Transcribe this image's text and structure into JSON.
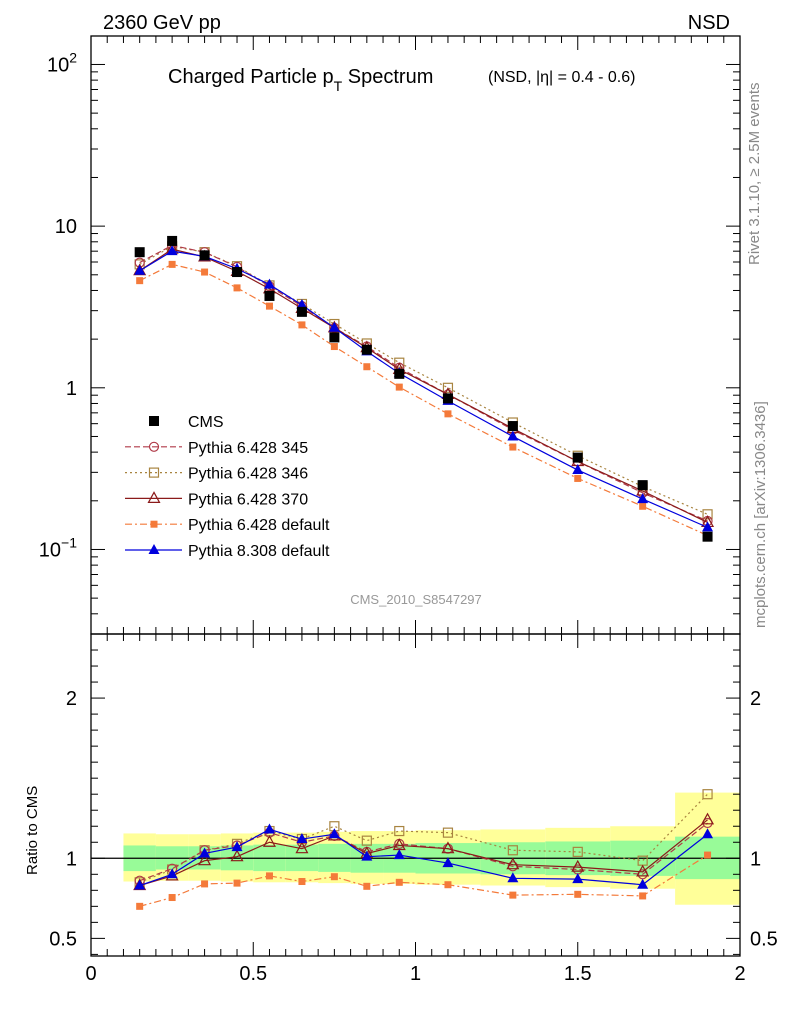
{
  "header": {
    "left": "2360 GeV pp",
    "right": "NSD"
  },
  "title": {
    "main_pre": "Charged Particle p",
    "main_sub": "T",
    "main_post": " Spectrum",
    "suffix": "(NSD, |η| = 0.4 - 0.6)"
  },
  "side_labels": {
    "rivet": "Rivet 3.1.10, ≥ 2.5M events",
    "mcplots": "mcplots.cern.ch [arXiv:1306.3436]"
  },
  "analysis_label": "CMS_2010_S8547297",
  "ratio_ylabel": "Ratio to CMS",
  "colors": {
    "cms": "#000000",
    "py345": "#b03a48",
    "py346": "#a88440",
    "py370": "#8b1a1a",
    "pydef": "#f47a3a",
    "py8": "#0000dd",
    "band_inner": "#98fb98",
    "band_outer": "#ffff99"
  },
  "chart_data": [
    {
      "type": "scatter",
      "panel": "main",
      "yscale": "log",
      "xlim": [
        0,
        2
      ],
      "ylim": [
        0.03,
        150
      ],
      "ytick_labels": [
        "10^-1",
        "1",
        "10",
        "10^2"
      ],
      "x": [
        0.15,
        0.25,
        0.35,
        0.45,
        0.55,
        0.65,
        0.75,
        0.85,
        0.95,
        1.1,
        1.3,
        1.5,
        1.7,
        1.9
      ],
      "series": [
        {
          "name": "CMS",
          "key": "cms",
          "values": [
            6.9,
            8.1,
            6.6,
            5.2,
            3.7,
            2.95,
            2.05,
            1.72,
            1.22,
            0.86,
            0.58,
            0.37,
            0.25,
            0.12
          ]
        },
        {
          "name": "Pythia 6.428 345",
          "key": "py345",
          "values": [
            5.95,
            7.6,
            6.9,
            5.6,
            4.25,
            3.2,
            2.35,
            1.8,
            1.33,
            0.91,
            0.55,
            0.35,
            0.224,
            0.15
          ]
        },
        {
          "name": "Pythia 6.428 346",
          "key": "py346",
          "values": [
            5.8,
            7.5,
            6.9,
            5.65,
            4.3,
            3.3,
            2.48,
            1.88,
            1.43,
            1.0,
            0.61,
            0.38,
            0.245,
            0.165
          ]
        },
        {
          "name": "Pythia 6.428 370",
          "key": "py370",
          "values": [
            5.3,
            7.2,
            6.45,
            5.25,
            4.1,
            3.1,
            2.35,
            1.77,
            1.3,
            0.91,
            0.56,
            0.35,
            0.23,
            0.147
          ]
        },
        {
          "name": "Pythia 6.428 default",
          "key": "pydef",
          "values": [
            4.6,
            5.8,
            5.2,
            4.15,
            3.2,
            2.45,
            1.8,
            1.35,
            1.01,
            0.69,
            0.43,
            0.275,
            0.185,
            0.122
          ]
        },
        {
          "name": "Pythia 8.308 default",
          "key": "py8",
          "values": [
            5.3,
            7.0,
            6.5,
            5.45,
            4.35,
            3.25,
            2.35,
            1.68,
            1.23,
            0.83,
            0.5,
            0.31,
            0.205,
            0.137
          ]
        }
      ]
    },
    {
      "type": "line",
      "panel": "ratio",
      "xlim": [
        0,
        2
      ],
      "ylim": [
        0.39,
        2.4
      ],
      "ytick_labels": [
        "0.5",
        "1",
        "2"
      ],
      "xtick_labels": [
        "0",
        "0.5",
        "1",
        "1.5",
        "2"
      ],
      "x": [
        0.15,
        0.25,
        0.35,
        0.45,
        0.55,
        0.65,
        0.75,
        0.85,
        0.95,
        1.1,
        1.3,
        1.5,
        1.7,
        1.9
      ],
      "bands": {
        "edges": [
          0.1,
          0.2,
          0.3,
          0.4,
          0.5,
          0.6,
          0.7,
          0.8,
          0.9,
          1.0,
          1.2,
          1.4,
          1.6,
          1.8,
          2.0
        ],
        "inner_lo": [
          0.92,
          0.93,
          0.93,
          0.925,
          0.92,
          0.92,
          0.915,
          0.91,
          0.91,
          0.905,
          0.9,
          0.895,
          0.89,
          0.87
        ],
        "inner_hi": [
          1.08,
          1.075,
          1.075,
          1.08,
          1.085,
          1.085,
          1.09,
          1.09,
          1.09,
          1.095,
          1.1,
          1.105,
          1.11,
          1.135
        ],
        "outer_lo": [
          0.855,
          0.86,
          0.86,
          0.855,
          0.85,
          0.85,
          0.845,
          0.84,
          0.84,
          0.835,
          0.83,
          0.82,
          0.81,
          0.71
        ],
        "outer_hi": [
          1.155,
          1.15,
          1.15,
          1.155,
          1.16,
          1.16,
          1.165,
          1.17,
          1.17,
          1.175,
          1.18,
          1.19,
          1.2,
          1.41
        ]
      },
      "series": [
        {
          "name": "Pythia 6.428 345",
          "key": "py345",
          "values": [
            0.86,
            0.935,
            1.05,
            1.08,
            1.16,
            1.1,
            1.14,
            1.04,
            1.09,
            1.06,
            0.95,
            0.93,
            0.9,
            1.22
          ]
        },
        {
          "name": "Pythia 6.428 346",
          "key": "py346",
          "values": [
            0.85,
            0.93,
            1.05,
            1.09,
            1.17,
            1.12,
            1.2,
            1.11,
            1.17,
            1.16,
            1.05,
            1.04,
            0.985,
            1.4
          ]
        },
        {
          "name": "Pythia 6.428 370",
          "key": "py370",
          "values": [
            0.83,
            0.89,
            0.985,
            1.01,
            1.1,
            1.06,
            1.14,
            1.03,
            1.08,
            1.06,
            0.96,
            0.945,
            0.915,
            1.24
          ]
        },
        {
          "name": "Pythia 6.428 default",
          "key": "pydef",
          "values": [
            0.7,
            0.755,
            0.84,
            0.845,
            0.89,
            0.855,
            0.885,
            0.825,
            0.85,
            0.835,
            0.77,
            0.775,
            0.765,
            1.02
          ]
        },
        {
          "name": "Pythia 8.308 default",
          "key": "py8",
          "values": [
            0.83,
            0.9,
            1.03,
            1.07,
            1.18,
            1.12,
            1.15,
            1.01,
            1.02,
            0.97,
            0.875,
            0.87,
            0.835,
            1.15
          ]
        }
      ]
    }
  ]
}
